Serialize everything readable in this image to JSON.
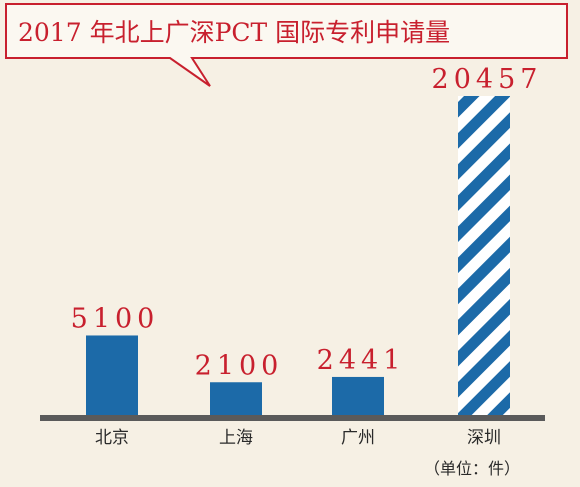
{
  "chart_data": {
    "type": "bar",
    "title": "2017 年北上广深PCT 国际专利申请量",
    "categories": [
      "北京",
      "上海",
      "广州",
      "深圳"
    ],
    "values": [
      5100,
      2100,
      2441,
      20457
    ],
    "value_labels": [
      "5100",
      "2100",
      "2441",
      "20457"
    ],
    "unit": "（单位：件）",
    "ylim": [
      0,
      20457
    ],
    "grid": false,
    "legend": "none"
  },
  "colors": {
    "bar": "#1c6aa8",
    "highlight_stripe": "#1c6aa8",
    "highlight_label": "#e0762b",
    "value_label": "#c8202e",
    "title_border": "#c8202e",
    "baseline": "#5a5a5a",
    "background": "#f6f0e4"
  }
}
